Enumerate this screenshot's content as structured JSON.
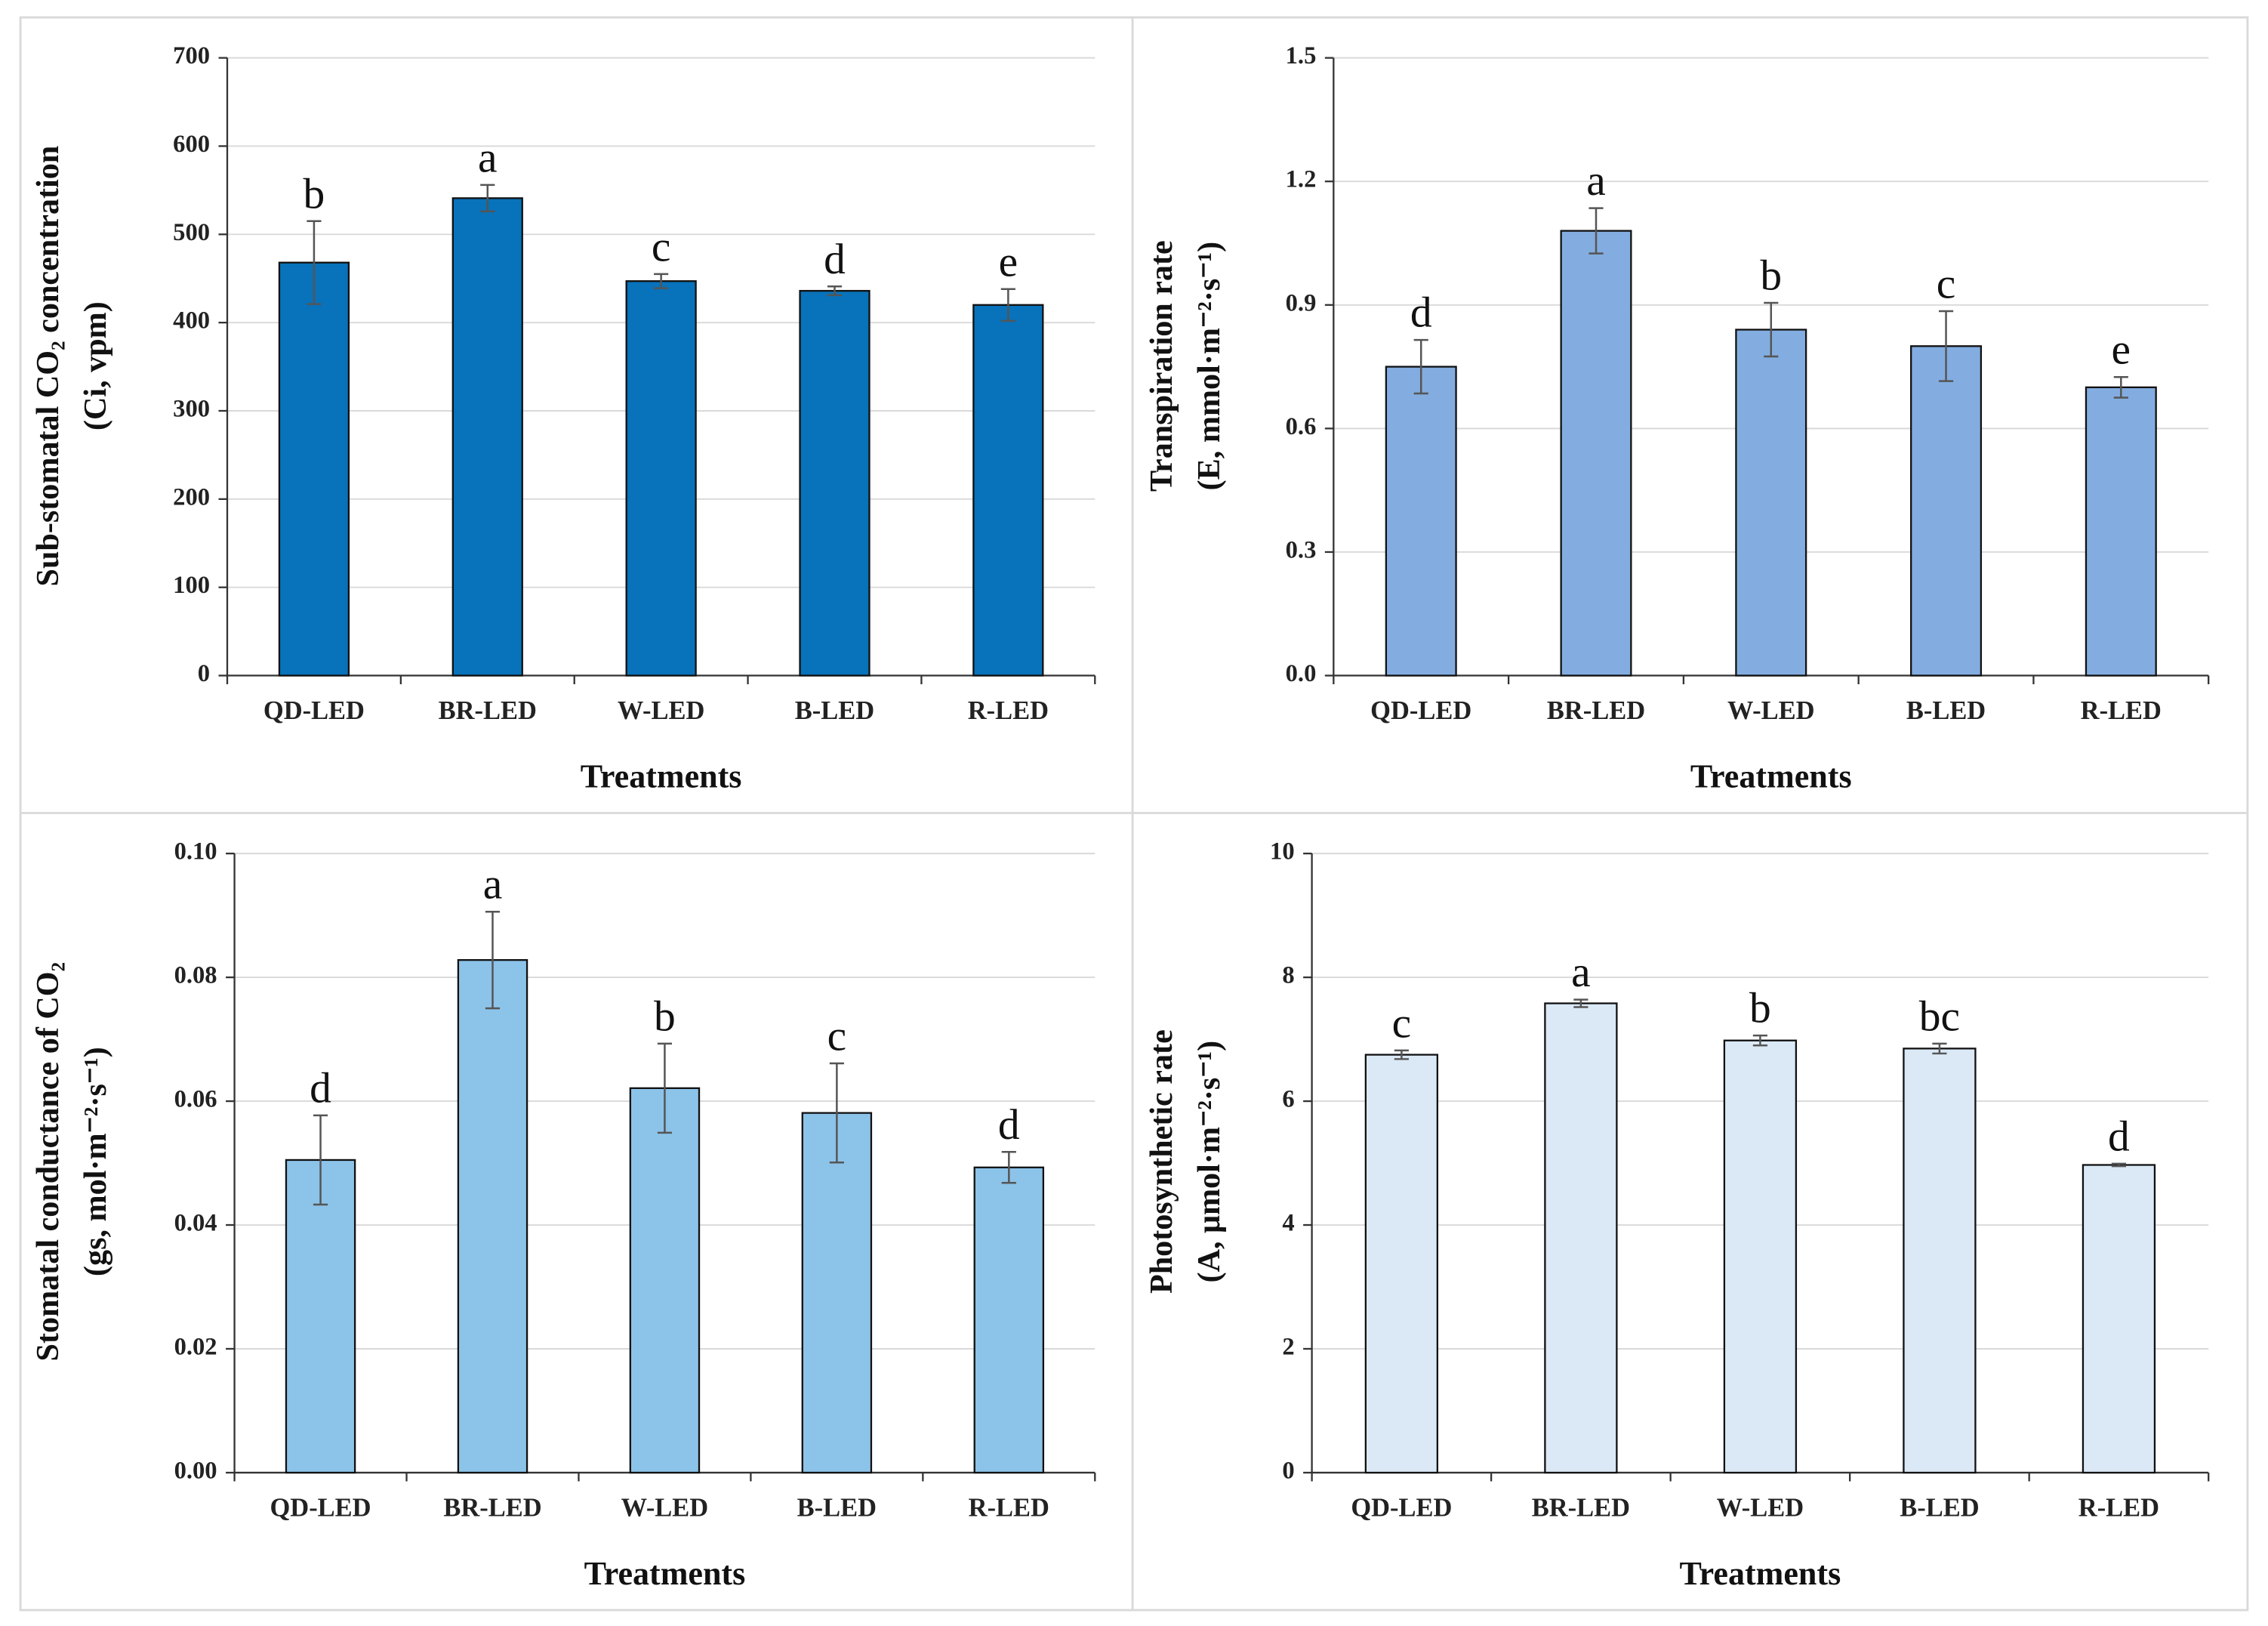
{
  "chart_data": [
    {
      "type": "bar",
      "ylabel": [
        "Sub-stomatal CO₂ concentration",
        "(Ci, vpm)"
      ],
      "xlabel": "Treatments",
      "categories": [
        "QD-LED",
        "BR-LED",
        "W-LED",
        "B-LED",
        "R-LED"
      ],
      "values": [
        468,
        541,
        447,
        436,
        420
      ],
      "errors": [
        47,
        15,
        8,
        5,
        18
      ],
      "letters": [
        "b",
        "a",
        "c",
        "d",
        "e"
      ],
      "color": "#0872ba",
      "ylim": [
        0,
        700
      ],
      "yticks": [
        0,
        100,
        200,
        300,
        400,
        500,
        600,
        700
      ],
      "grid": true
    },
    {
      "type": "bar",
      "ylabel": [
        "Transpiration rate",
        "(E, mmol·m⁻²·s⁻¹)"
      ],
      "xlabel": "Treatments",
      "categories": [
        "QD-LED",
        "BR-LED",
        "W-LED",
        "B-LED",
        "R-LED"
      ],
      "values": [
        0.75,
        1.08,
        0.84,
        0.8,
        0.7
      ],
      "errors": [
        0.065,
        0.055,
        0.065,
        0.085,
        0.025
      ],
      "letters": [
        "d",
        "a",
        "b",
        "c",
        "e"
      ],
      "color": "#83ade0",
      "ylim": [
        0,
        1.5
      ],
      "yticks": [
        {
          "value": 0,
          "label": "0.0"
        },
        0.3,
        0.6,
        0.9,
        1.2,
        1.5
      ],
      "grid": true
    },
    {
      "type": "bar",
      "ylabel": [
        "Stomatal conductance of CO₂",
        "(gs, mol·m⁻²·s⁻¹)"
      ],
      "xlabel": "Treatments",
      "categories": [
        "QD-LED",
        "BR-LED",
        "W-LED",
        "B-LED",
        "R-LED"
      ],
      "values": [
        0.0505,
        0.0828,
        0.0621,
        0.0581,
        0.0493
      ],
      "errors": [
        0.0072,
        0.0078,
        0.0072,
        0.008,
        0.0025
      ],
      "letters": [
        "d",
        "a",
        "b",
        "c",
        "d"
      ],
      "color": "#8cc3e9",
      "ylim": [
        0,
        0.1
      ],
      "yticks": [
        {
          "value": 0,
          "label": "0.00"
        },
        {
          "value": 0.02,
          "label": "0.02"
        },
        {
          "value": 0.04,
          "label": "0.04"
        },
        {
          "value": 0.06,
          "label": "0.06"
        },
        {
          "value": 0.08,
          "label": "0.08"
        },
        {
          "value": 0.1,
          "label": "0.10"
        }
      ],
      "grid": true
    },
    {
      "type": "bar",
      "ylabel": [
        "Photosynthetic rate",
        "(A, μmol·m⁻²·s⁻¹)"
      ],
      "xlabel": "Treatments",
      "categories": [
        "QD-LED",
        "BR-LED",
        "W-LED",
        "B-LED",
        "R-LED"
      ],
      "values": [
        6.75,
        7.58,
        6.98,
        6.85,
        4.97
      ],
      "errors": [
        0.07,
        0.06,
        0.08,
        0.08,
        0.02
      ],
      "letters": [
        "c",
        "a",
        "b",
        "bc",
        "d"
      ],
      "color": "#dbe9f6",
      "ylim": [
        0,
        10
      ],
      "yticks": [
        0,
        2,
        4,
        6,
        8,
        10
      ],
      "grid": true
    }
  ]
}
